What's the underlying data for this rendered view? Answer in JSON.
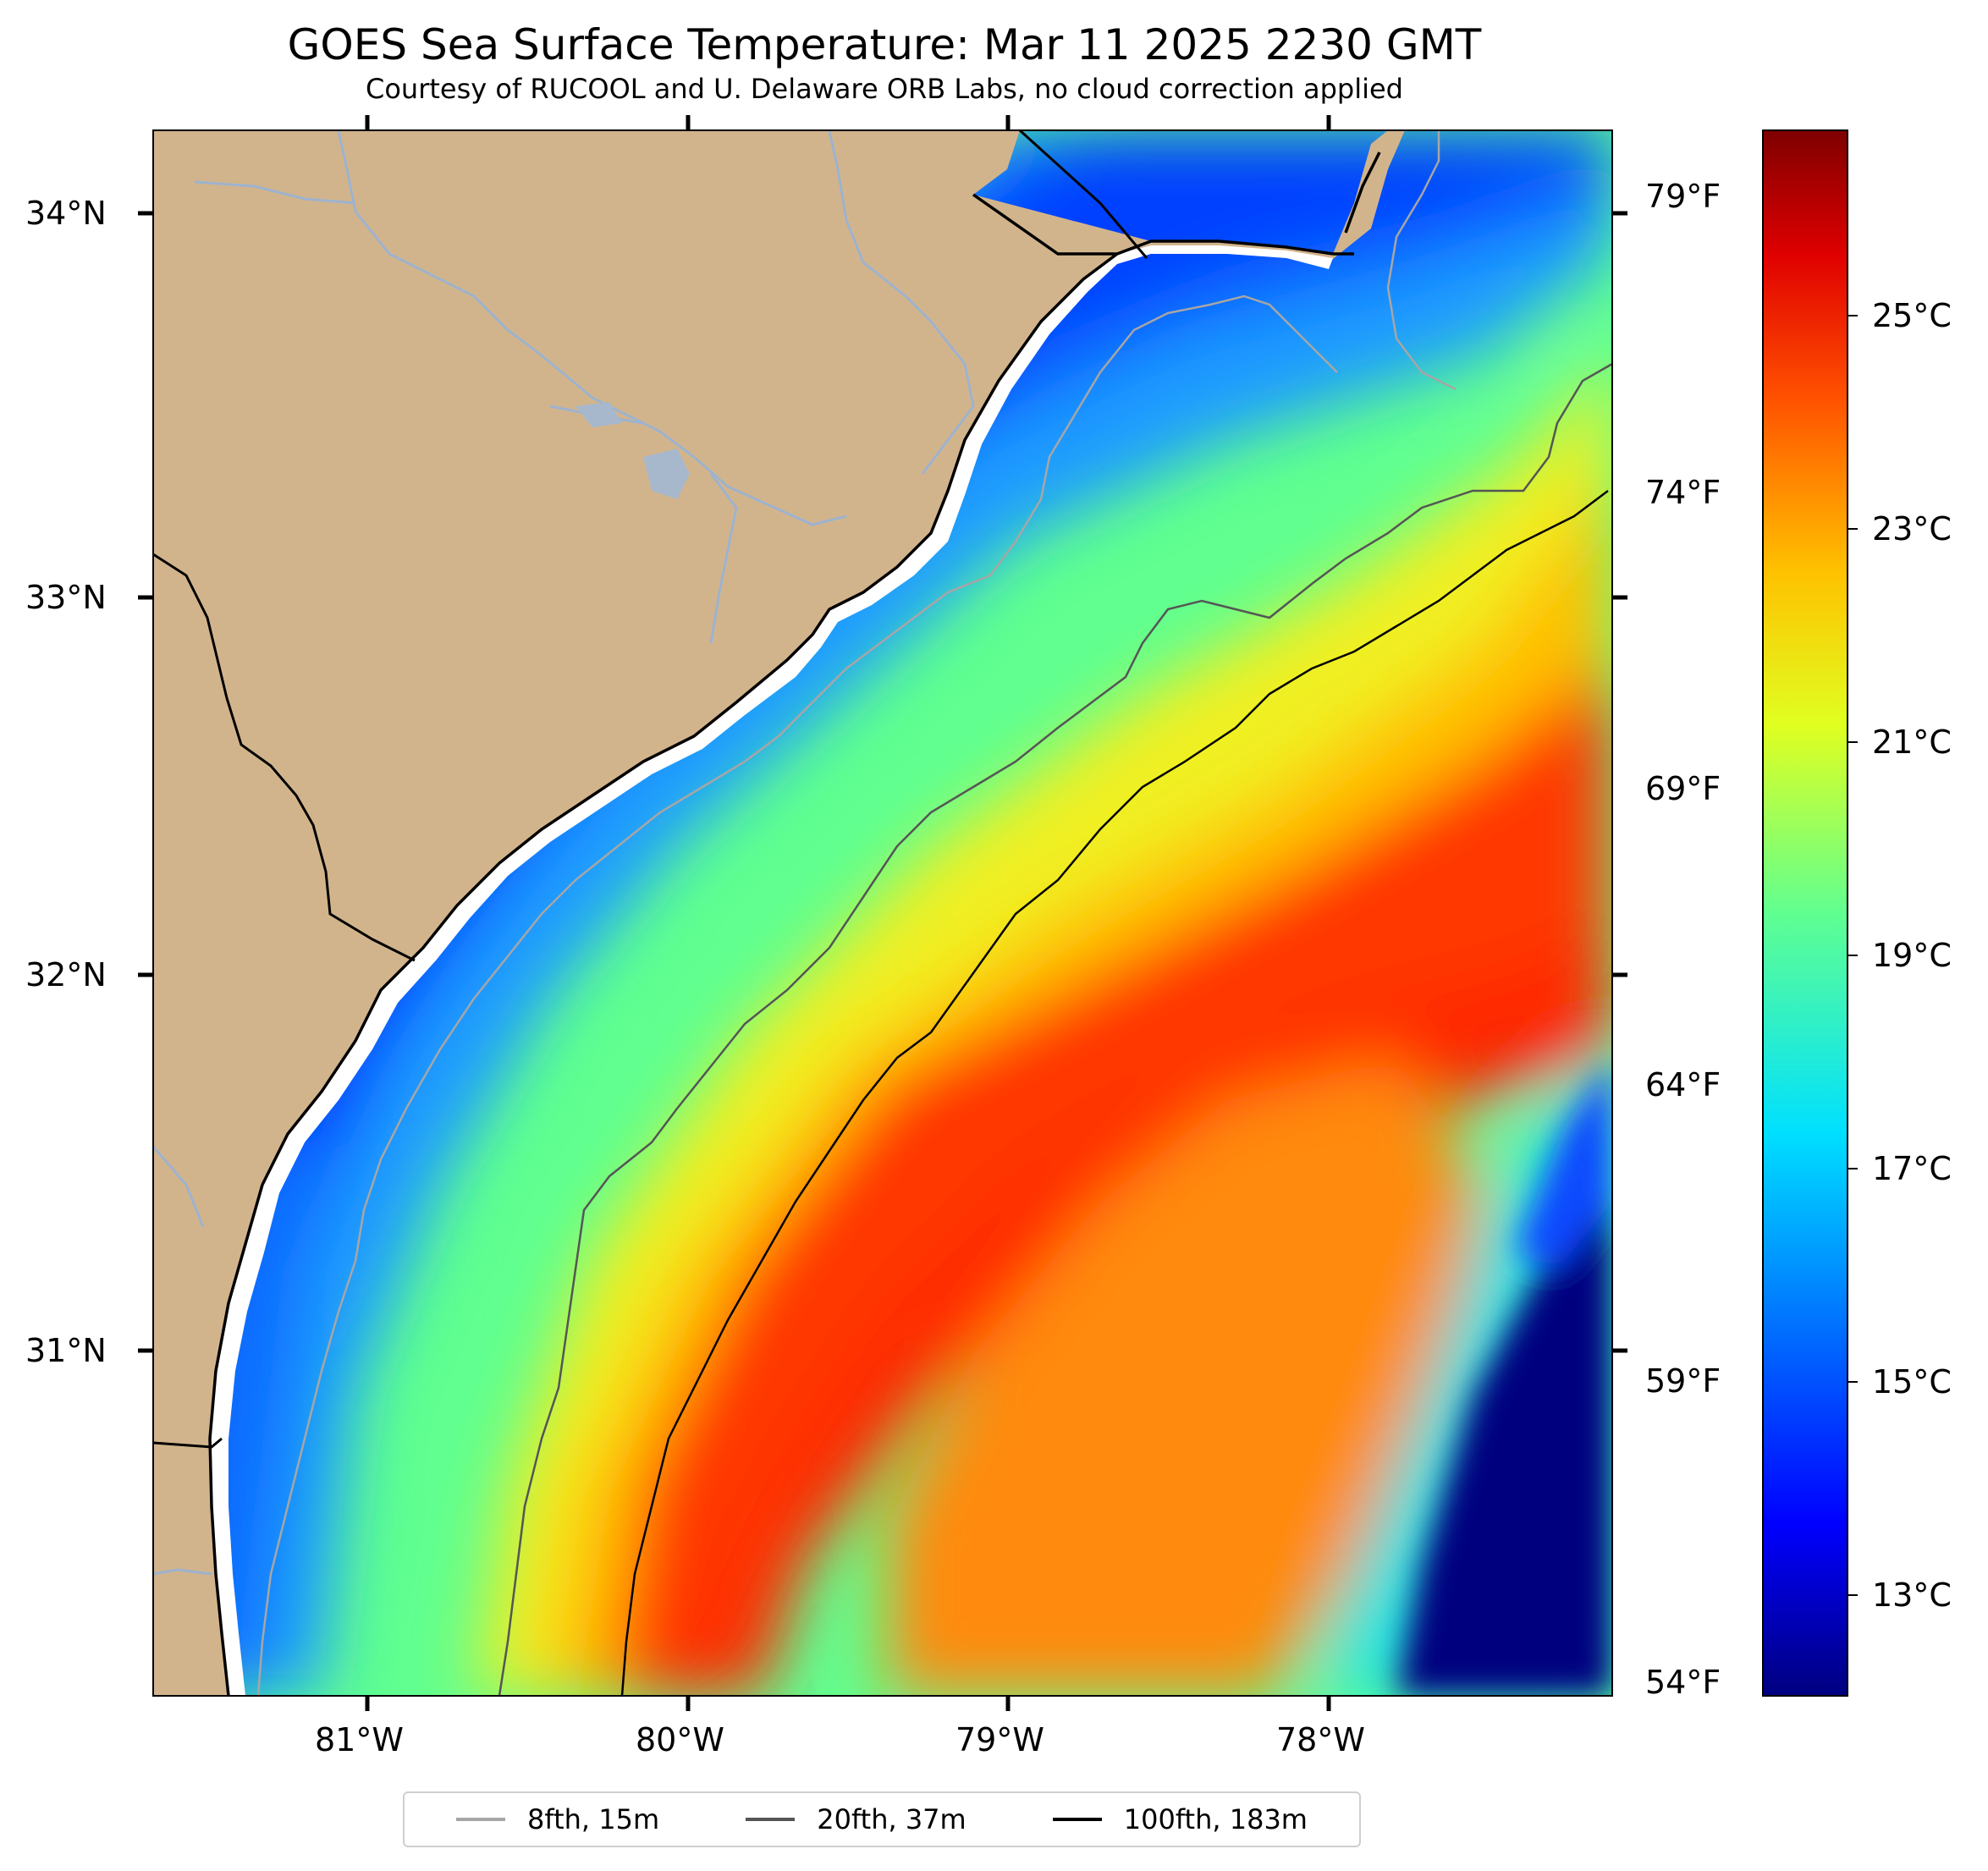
{
  "title": "GOES Sea Surface Temperature: Mar 11 2025 2230 GMT",
  "subtitle": "Courtesy of RUCOOL and U. Delaware ORB Labs, no cloud correction applied",
  "lat_labels": [
    "34°N",
    "33°N",
    "32°N",
    "31°N"
  ],
  "lon_labels": [
    "81°W",
    "80°W",
    "79°W",
    "78°W"
  ],
  "fahrenheit_labels": [
    "79°F",
    "74°F",
    "69°F",
    "64°F",
    "59°F",
    "54°F"
  ],
  "colorbar": {
    "labels": [
      "25°C",
      "23°C",
      "21°C",
      "19°C",
      "17°C",
      "15°C",
      "13°C"
    ]
  },
  "legend": [
    {
      "label": "8fth, 15m",
      "color": "#a6a6a6"
    },
    {
      "label": "20fth, 37m",
      "color": "#555555"
    },
    {
      "label": "100fth, 183m",
      "color": "#000000"
    }
  ],
  "colors": {
    "land": "#d2b48c",
    "coast_gap": "#ffffff",
    "river": "#9db3cf"
  }
}
